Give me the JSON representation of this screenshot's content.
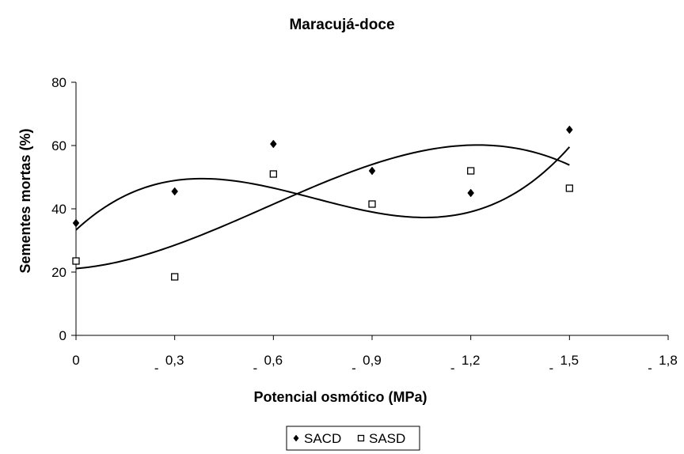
{
  "chart_data": {
    "type": "scatter",
    "title": "Maracujá-doce",
    "xlabel": "Potencial osmótico (MPa)",
    "ylabel": "Sementes mortas (%)",
    "xlim": [
      0,
      1.8
    ],
    "ylim": [
      0,
      80
    ],
    "x_ticks": [
      0,
      0.3,
      0.6,
      0.9,
      1.2,
      1.5,
      1.8
    ],
    "x_tick_labels": [
      "0",
      "0,3",
      "0,6",
      "0,9",
      "1,2",
      "1,5",
      "1,8"
    ],
    "x_tick_prefixes": [
      "",
      "-",
      "-",
      "-",
      "-",
      "-",
      "-"
    ],
    "y_ticks": [
      0,
      20,
      40,
      60,
      80
    ],
    "y_tick_labels": [
      "0",
      "20",
      "40",
      "60",
      "80"
    ],
    "grid": false,
    "legend_position": "bottom-center",
    "trendline": "polynomial order 3",
    "series": [
      {
        "name": "SACD",
        "marker": "filled-diamond",
        "color": "#000000",
        "x": [
          0,
          0.3,
          0.6,
          0.9,
          1.2,
          1.5
        ],
        "y": [
          35.5,
          45.5,
          60.5,
          52,
          45,
          65
        ],
        "trend_coefficients": [
          33.32,
          96.31,
          -171.2,
          79.1
        ]
      },
      {
        "name": "SASD",
        "marker": "open-square",
        "color": "#000000",
        "x": [
          0,
          0.3,
          0.6,
          0.9,
          1.2,
          1.5
        ],
        "y": [
          23.5,
          18.5,
          51,
          41.5,
          52,
          46.5
        ],
        "trend_coefficients": [
          21.12,
          8.67,
          64.3,
          -37.03
        ]
      }
    ]
  }
}
